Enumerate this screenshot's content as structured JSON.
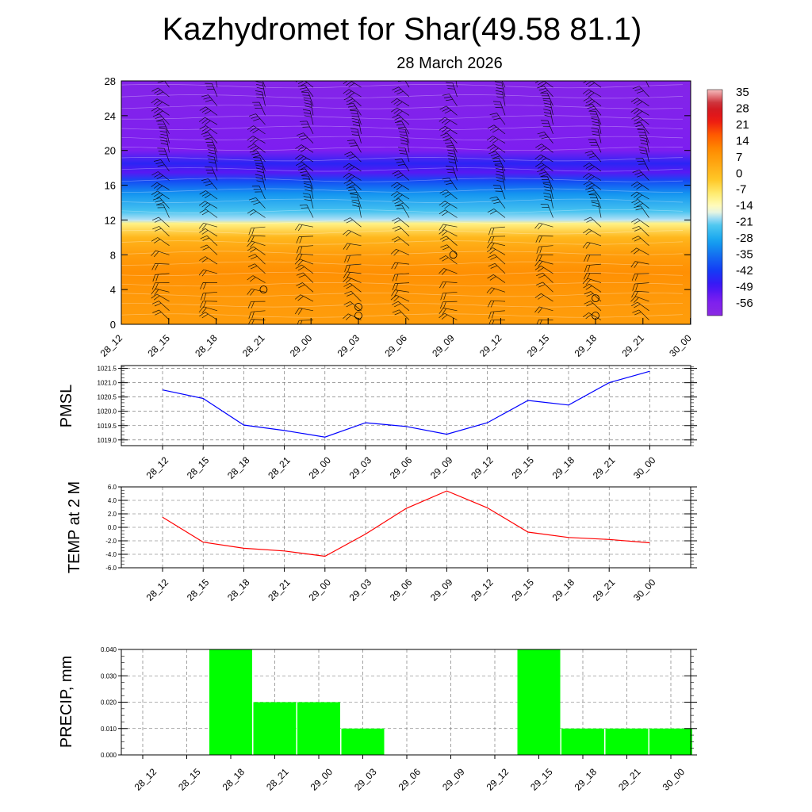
{
  "title": "Kazhydromet for Shar(49.58 81.1)",
  "subtitle": "28 March 2026",
  "chart_data": [
    {
      "type": "heatmap",
      "title": "",
      "xlabel": "",
      "ylabel": "",
      "x_ticks": [
        "28_12",
        "28_15",
        "28_18",
        "28_21",
        "29_00",
        "29_03",
        "29_06",
        "29_09",
        "29_12",
        "29_15",
        "29_18",
        "29_21",
        "30_00"
      ],
      "y_ticks": [
        0,
        4,
        8,
        12,
        16,
        20,
        24,
        28
      ],
      "ylim": [
        0,
        28
      ],
      "colorbar": {
        "labels": [
          "35",
          "28",
          "21",
          "14",
          "7",
          "0",
          "-7",
          "-14",
          "-21",
          "-28",
          "-35",
          "-42",
          "-49",
          "-56"
        ],
        "range": [
          -63,
          42
        ]
      },
      "levels": [
        {
          "y": 0,
          "value": 10
        },
        {
          "y": 3,
          "value": 11
        },
        {
          "y": 6,
          "value": 13
        },
        {
          "y": 8,
          "value": 10
        },
        {
          "y": 10,
          "value": 4
        },
        {
          "y": 11.6,
          "value": -8
        },
        {
          "y": 12,
          "value": -17
        },
        {
          "y": 13,
          "value": -22
        },
        {
          "y": 15,
          "value": -30
        },
        {
          "y": 16.5,
          "value": -40
        },
        {
          "y": 17.5,
          "value": -52
        },
        {
          "y": 18.5,
          "value": -46
        },
        {
          "y": 20,
          "value": -56
        },
        {
          "y": 24,
          "value": -58
        },
        {
          "y": 28,
          "value": -60
        }
      ],
      "grid": false
    },
    {
      "type": "line",
      "ylabel": "PMSL",
      "x": [
        "28_12",
        "28_15",
        "28_18",
        "28_21",
        "29_00",
        "29_03",
        "29_06",
        "29_09",
        "29_12",
        "29_15",
        "29_18",
        "29_21",
        "30_00"
      ],
      "y_ticks": [
        "1019.0",
        "1019.5",
        "1020.0",
        "1020.5",
        "1021.0",
        "1021.5"
      ],
      "ylim": [
        1018.8,
        1021.6
      ],
      "series": [
        {
          "values": [
            1020.75,
            1020.45,
            1019.52,
            1019.33,
            1019.1,
            1019.6,
            1019.47,
            1019.2,
            1019.6,
            1020.38,
            1020.22,
            1021.0,
            1021.4
          ],
          "color": "#0000ff"
        }
      ],
      "grid": true
    },
    {
      "type": "line",
      "ylabel": "TEMP at 2 M",
      "x": [
        "28_12",
        "28_15",
        "28_18",
        "28_21",
        "29_00",
        "29_03",
        "29_06",
        "29_09",
        "29_12",
        "29_15",
        "29_18",
        "29_21",
        "30_00"
      ],
      "y_ticks": [
        "-6.0",
        "-4.0",
        "-2.0",
        "0.0",
        "2.0",
        "4.0",
        "6.0"
      ],
      "ylim": [
        -6,
        6
      ],
      "series": [
        {
          "values": [
            1.5,
            -2.2,
            -3.1,
            -3.5,
            -4.3,
            -1.0,
            2.8,
            5.4,
            2.9,
            -0.7,
            -1.5,
            -1.8,
            -2.3
          ],
          "color": "#ff0000"
        }
      ],
      "grid": true
    },
    {
      "type": "bar",
      "ylabel": "PRECIP, mm",
      "categories": [
        "28_12",
        "28_15",
        "28_18",
        "28_21",
        "29_00",
        "29_03",
        "29_06",
        "29_09",
        "29_12",
        "29_15",
        "29_18",
        "29_21",
        "30_00"
      ],
      "values": [
        0,
        0,
        0.04,
        0.02,
        0.02,
        0.01,
        0,
        0,
        0,
        0.04,
        0.01,
        0.01,
        0.01
      ],
      "y_ticks": [
        "0.000",
        "0.010",
        "0.020",
        "0.030",
        "0.040"
      ],
      "ylim": [
        0,
        0.04
      ],
      "color": "#00ff00",
      "grid": true
    }
  ]
}
